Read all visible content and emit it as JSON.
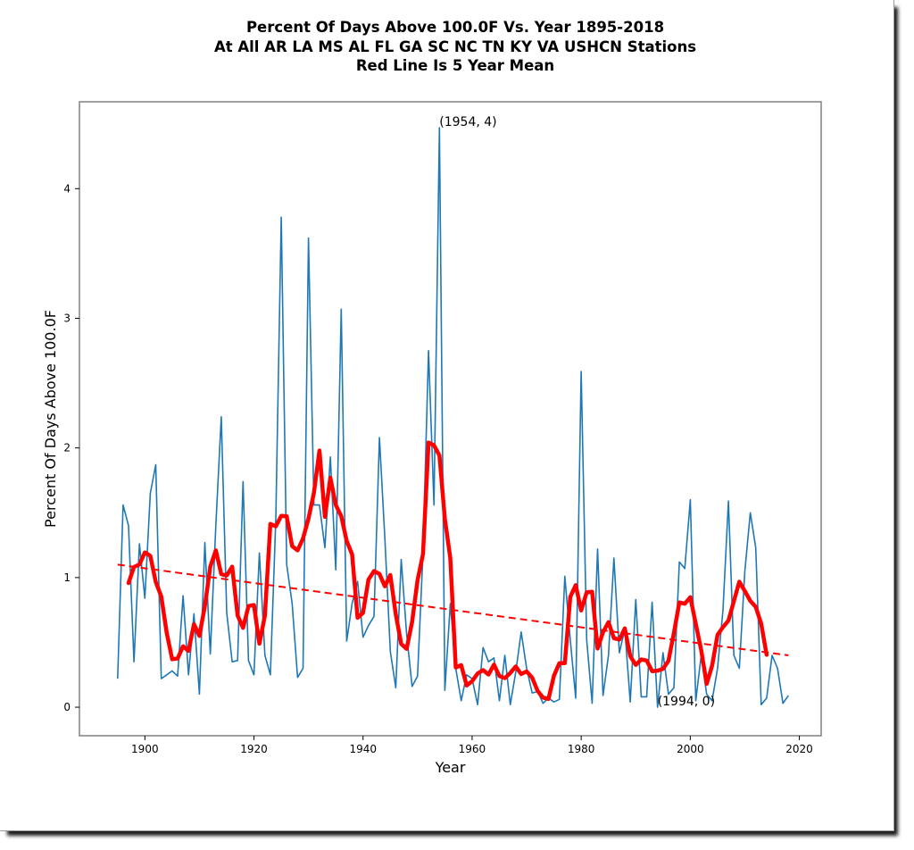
{
  "chart_data": {
    "type": "line",
    "title_lines": [
      "Percent Of Days Above 100.0F Vs. Year 1895-2018",
      "At All AR LA MS AL FL GA SC NC TN KY VA USHCN Stations",
      "Red Line Is 5 Year Mean"
    ],
    "xlabel": "Year",
    "ylabel": "Percent Of Days Above 100.0F",
    "xlim": [
      1888,
      2024
    ],
    "ylim": [
      -0.22,
      4.67
    ],
    "xticks": [
      1900,
      1920,
      1940,
      1960,
      1980,
      2000,
      2020
    ],
    "yticks": [
      0,
      1,
      2,
      3,
      4
    ],
    "grid": false,
    "legend": "none",
    "colors": {
      "annual": "#1f77b4",
      "mean": "#ff0000",
      "trend": "#ff0000"
    },
    "x": [
      1895,
      1896,
      1897,
      1898,
      1899,
      1900,
      1901,
      1902,
      1903,
      1904,
      1905,
      1906,
      1907,
      1908,
      1909,
      1910,
      1911,
      1912,
      1913,
      1914,
      1915,
      1916,
      1917,
      1918,
      1919,
      1920,
      1921,
      1922,
      1923,
      1924,
      1925,
      1926,
      1927,
      1928,
      1929,
      1930,
      1931,
      1932,
      1933,
      1934,
      1935,
      1936,
      1937,
      1938,
      1939,
      1940,
      1941,
      1942,
      1943,
      1944,
      1945,
      1946,
      1947,
      1948,
      1949,
      1950,
      1951,
      1952,
      1953,
      1954,
      1955,
      1956,
      1957,
      1958,
      1959,
      1960,
      1961,
      1962,
      1963,
      1964,
      1965,
      1966,
      1967,
      1968,
      1969,
      1970,
      1971,
      1972,
      1973,
      1974,
      1975,
      1976,
      1977,
      1978,
      1979,
      1980,
      1981,
      1982,
      1983,
      1984,
      1985,
      1986,
      1987,
      1988,
      1989,
      1990,
      1991,
      1992,
      1993,
      1994,
      1995,
      1996,
      1997,
      1998,
      1999,
      2000,
      2001,
      2002,
      2003,
      2004,
      2005,
      2006,
      2007,
      2008,
      2009,
      2010,
      2011,
      2012,
      2013,
      2014,
      2015,
      2016,
      2017,
      2018
    ],
    "series": [
      {
        "name": "Annual percent of days above 100.0F",
        "style": "thin-line",
        "values": [
          0.22,
          1.56,
          1.4,
          0.35,
          1.26,
          0.84,
          1.65,
          1.87,
          0.22,
          0.25,
          0.28,
          0.24,
          0.86,
          0.25,
          0.72,
          0.1,
          1.27,
          0.41,
          1.4,
          2.24,
          0.73,
          0.35,
          0.36,
          1.74,
          0.36,
          0.25,
          1.19,
          0.4,
          0.25,
          1.45,
          3.78,
          1.1,
          0.8,
          0.23,
          0.3,
          3.62,
          1.56,
          1.56,
          1.23,
          1.93,
          1.06,
          3.07,
          0.51,
          0.8,
          0.97,
          0.54,
          0.63,
          0.7,
          2.08,
          1.3,
          0.43,
          0.15,
          1.14,
          0.56,
          0.16,
          0.24,
          1.19,
          2.75,
          1.56,
          4.47,
          0.13,
          0.8,
          0.3,
          0.05,
          0.25,
          0.22,
          0.02,
          0.46,
          0.35,
          0.38,
          0.05,
          0.4,
          0.02,
          0.27,
          0.58,
          0.3,
          0.11,
          0.12,
          0.03,
          0.07,
          0.04,
          0.06,
          1.01,
          0.52,
          0.07,
          2.59,
          0.52,
          0.03,
          1.22,
          0.09,
          0.4,
          1.15,
          0.42,
          0.6,
          0.04,
          0.83,
          0.08,
          0.08,
          0.81,
          0.0,
          0.42,
          0.1,
          0.15,
          1.12,
          1.07,
          1.6,
          0.05,
          0.4,
          0.1,
          0.05,
          0.3,
          0.75,
          1.59,
          0.4,
          0.3,
          1.05,
          1.5,
          1.23,
          0.02,
          0.07,
          0.4,
          0.3,
          0.03,
          0.09
        ]
      },
      {
        "name": "5 Year Mean",
        "style": "thick-line",
        "window": 5
      },
      {
        "name": "Linear trend",
        "style": "dashed-line",
        "x": [
          1895,
          2018
        ],
        "values": [
          1.1,
          0.4
        ]
      }
    ],
    "annotations": [
      {
        "text": "(1954, 4)",
        "x": 1954,
        "y": 4.47
      },
      {
        "text": "(1994, 0)",
        "x": 1994,
        "y": 0.0
      }
    ]
  }
}
